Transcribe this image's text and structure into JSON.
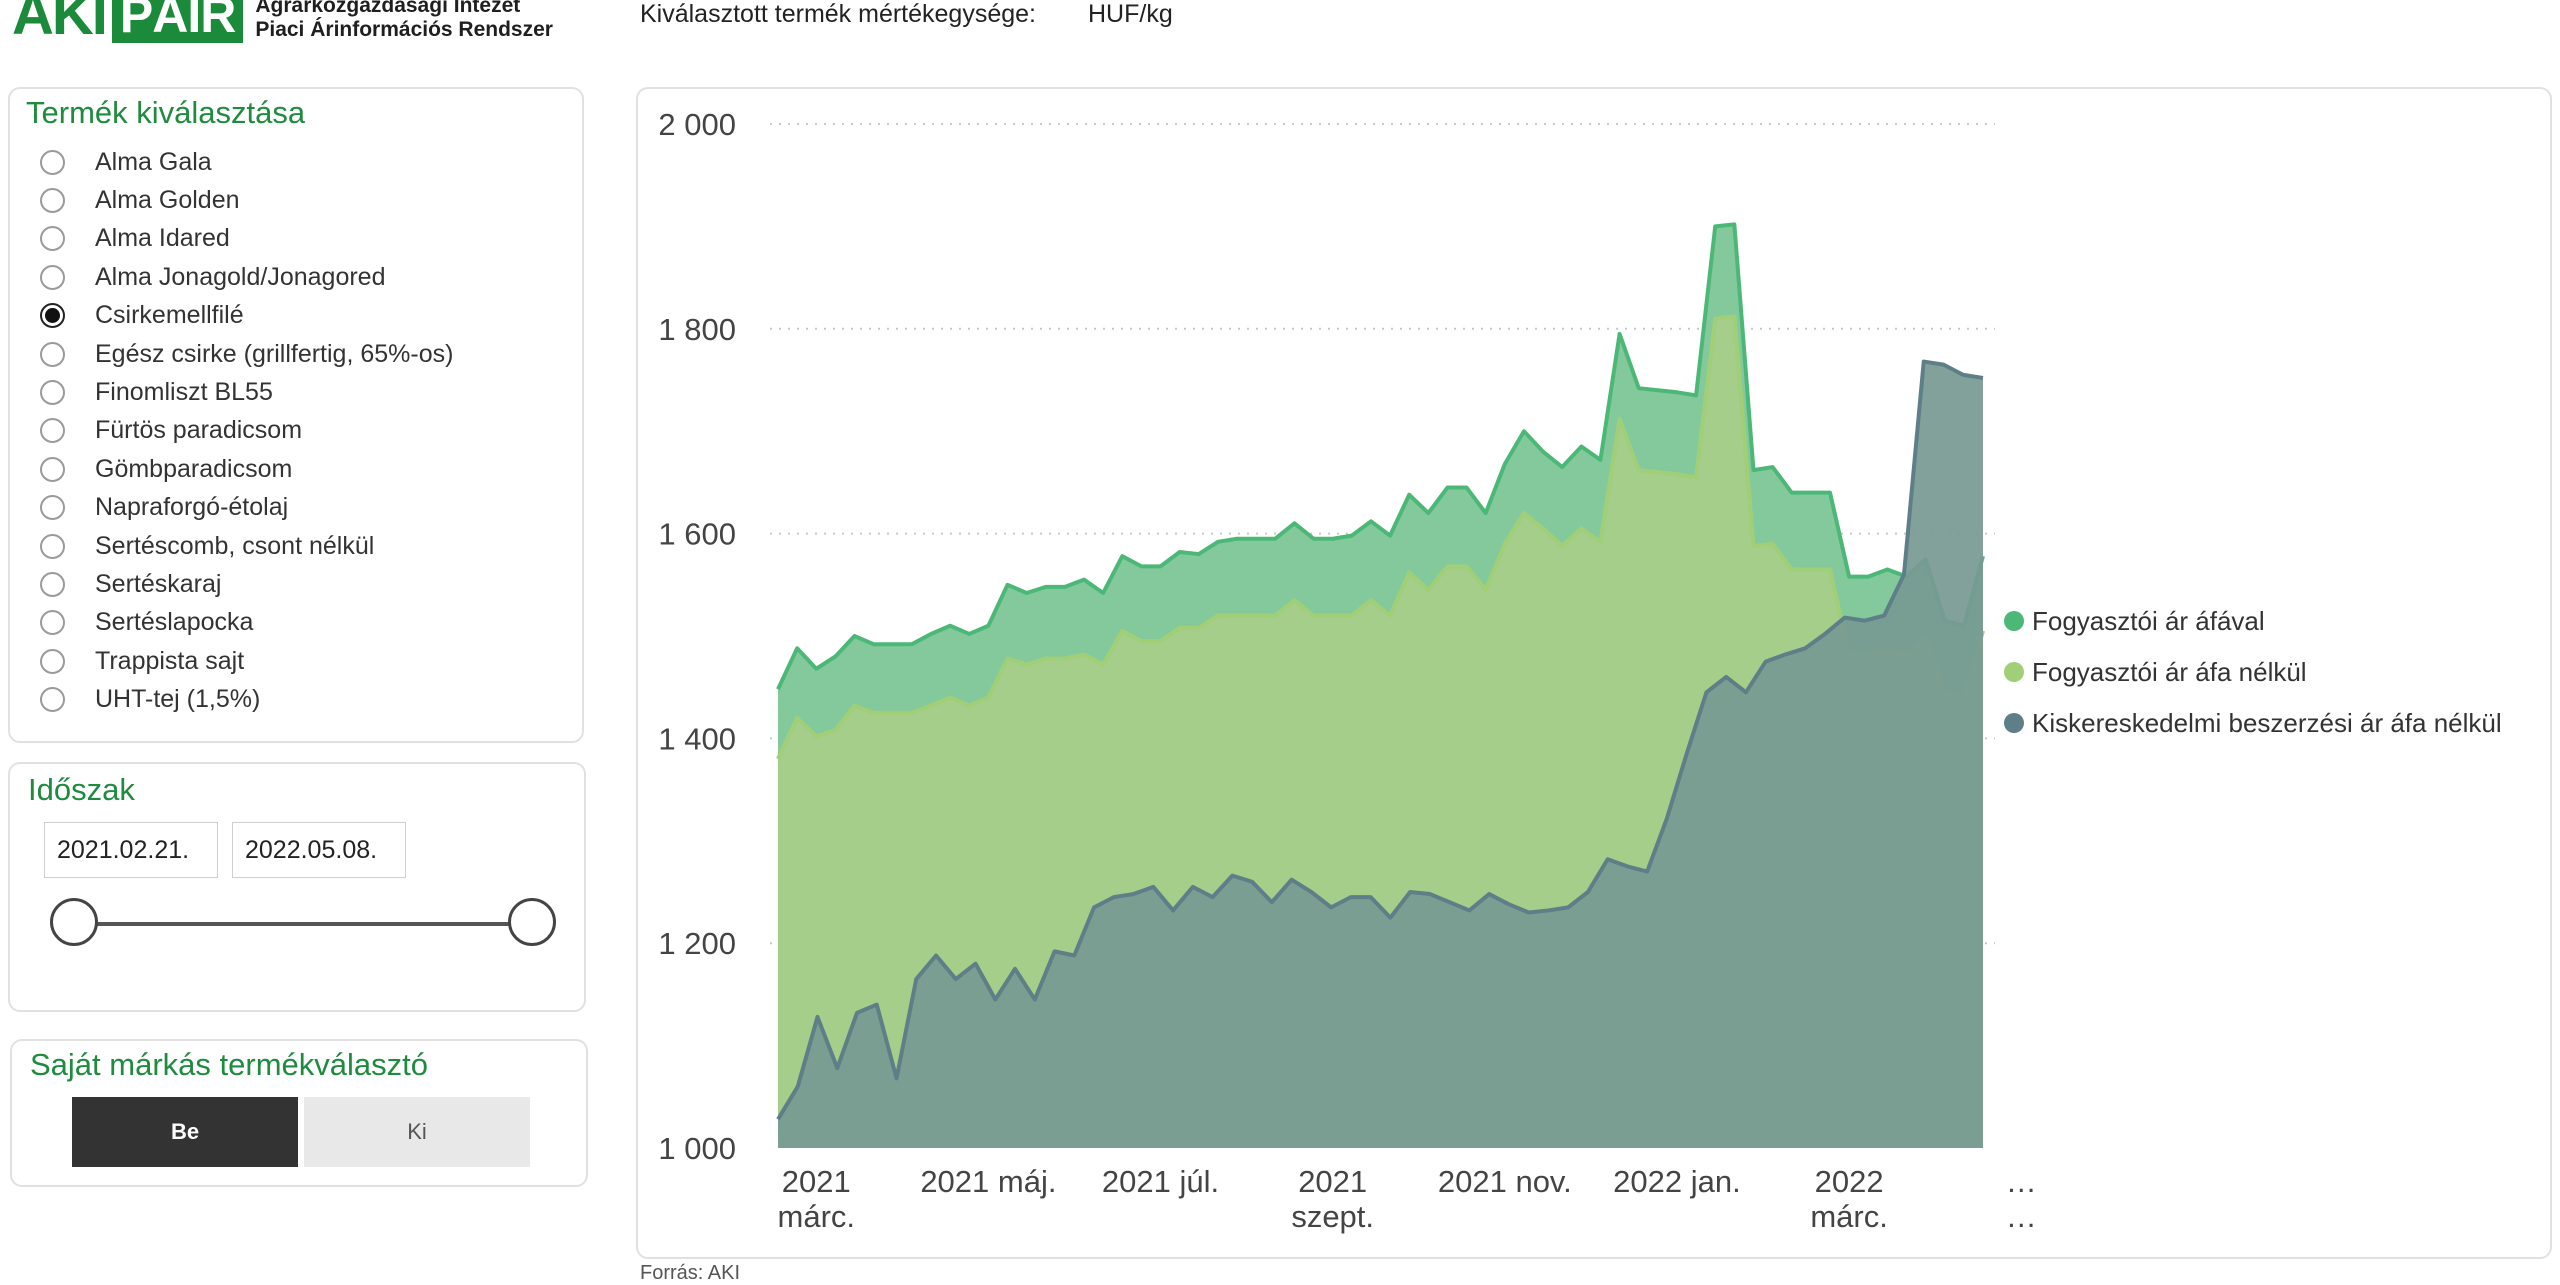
{
  "header": {
    "logo_mark_left": "AKI",
    "logo_mark_right": "PÁIR",
    "logo_line1": "Agrárközgazdasági Intézet",
    "logo_line2": "Piaci Árinformációs Rendszer",
    "unit_label": "Kiválasztott termék mértékegysége:",
    "unit_value": "HUF/kg"
  },
  "product_panel": {
    "title": "Termék kiválasztása",
    "items": [
      {
        "label": "Alma Gala",
        "selected": false
      },
      {
        "label": "Alma Golden",
        "selected": false
      },
      {
        "label": "Alma Idared",
        "selected": false
      },
      {
        "label": "Alma Jonagold/Jonagored",
        "selected": false
      },
      {
        "label": "Csirkemellfilé",
        "selected": true
      },
      {
        "label": "Egész csirke (grillfertig, 65%-os)",
        "selected": false
      },
      {
        "label": "Finomliszt BL55",
        "selected": false
      },
      {
        "label": "Fürtös paradicsom",
        "selected": false
      },
      {
        "label": "Gömbparadicsom",
        "selected": false
      },
      {
        "label": "Napraforgó-étolaj",
        "selected": false
      },
      {
        "label": "Sertéscomb, csont nélkül",
        "selected": false
      },
      {
        "label": "Sertéskaraj",
        "selected": false
      },
      {
        "label": "Sertéslapocka",
        "selected": false
      },
      {
        "label": "Trappista sajt",
        "selected": false
      },
      {
        "label": "UHT-tej (1,5%)",
        "selected": false
      }
    ]
  },
  "period_panel": {
    "title": "Időszak",
    "start_date": "2021.02.21.",
    "end_date": "2022.05.08."
  },
  "brand_panel": {
    "title": "Saját márkás termékválasztó",
    "on_label": "Be",
    "off_label": "Ki"
  },
  "footer": {
    "text": "Forrás: AKI"
  },
  "colors": {
    "series1_fill": "#84c99c",
    "series1_line": "#4cb877",
    "series2_fill": "#a4ce8a",
    "series2_line": "#a0cf78",
    "series3_fill": "#779a92",
    "series3_line": "#5e7f88",
    "accent": "#1e8b3e"
  },
  "chart_data": {
    "type": "area",
    "title": "",
    "xlabel": "",
    "ylabel": "HUF/kg",
    "ylim": [
      1000,
      2000
    ],
    "yticks": [
      1000,
      1200,
      1400,
      1600,
      1800,
      2000
    ],
    "ytick_labels": [
      "1 000",
      "1 200",
      "1 400",
      "1 600",
      "1 800",
      "2 000"
    ],
    "grid": "horizontal dotted",
    "x_ticks": [
      {
        "index": 2,
        "lines": [
          "2021",
          "márc."
        ]
      },
      {
        "index": 11,
        "lines": [
          "2021 máj."
        ]
      },
      {
        "index": 20,
        "lines": [
          "2021 júl."
        ]
      },
      {
        "index": 29,
        "lines": [
          "2021",
          "szept."
        ]
      },
      {
        "index": 38,
        "lines": [
          "2021 nov."
        ]
      },
      {
        "index": 47,
        "lines": [
          "2022 jan."
        ]
      },
      {
        "index": 56,
        "lines": [
          "2022",
          "márc."
        ]
      },
      {
        "index": 65,
        "lines": [
          "…",
          "…"
        ]
      }
    ],
    "series": [
      {
        "name": "Fogyasztói ár áfával",
        "values": [
          1448,
          1488,
          1468,
          1480,
          1500,
          1492,
          1492,
          1492,
          1502,
          1510,
          1502,
          1510,
          1550,
          1542,
          1548,
          1548,
          1555,
          1542,
          1578,
          1568,
          1568,
          1582,
          1580,
          1592,
          1595,
          1595,
          1595,
          1610,
          1595,
          1595,
          1598,
          1612,
          1598,
          1638,
          1620,
          1645,
          1645,
          1620,
          1668,
          1700,
          1680,
          1665,
          1685,
          1672,
          1795,
          1742,
          1740,
          1738,
          1735,
          1900,
          1902,
          1662,
          1665,
          1640,
          1640,
          1640,
          1558,
          1558,
          1565,
          1558,
          1575,
          1515,
          1510,
          1578
        ]
      },
      {
        "name": "Fogyasztói ár áfa nélkül",
        "values": [
          1380,
          1420,
          1402,
          1408,
          1432,
          1425,
          1425,
          1425,
          1432,
          1440,
          1432,
          1440,
          1478,
          1472,
          1478,
          1478,
          1482,
          1472,
          1505,
          1495,
          1495,
          1508,
          1508,
          1520,
          1520,
          1520,
          1520,
          1535,
          1520,
          1520,
          1520,
          1535,
          1520,
          1562,
          1545,
          1568,
          1568,
          1545,
          1590,
          1620,
          1605,
          1588,
          1605,
          1592,
          1712,
          1662,
          1660,
          1658,
          1655,
          1810,
          1812,
          1588,
          1590,
          1565,
          1565,
          1565,
          1482,
          1482,
          1488,
          1482,
          1500,
          1445,
          1440,
          1505
        ]
      },
      {
        "name": "Kiskereskedelmi beszerzési ár áfa nélkül",
        "values": [
          1028,
          1060,
          1128,
          1078,
          1132,
          1140,
          1068,
          1165,
          1188,
          1165,
          1180,
          1145,
          1175,
          1145,
          1192,
          1188,
          1235,
          1245,
          1248,
          1255,
          1232,
          1255,
          1245,
          1266,
          1260,
          1240,
          1262,
          1250,
          1235,
          1245,
          1245,
          1225,
          1250,
          1248,
          1240,
          1232,
          1248,
          1238,
          1230,
          1232,
          1235,
          1250,
          1282,
          1275,
          1270,
          1322,
          1385,
          1445,
          1460,
          1445,
          1475,
          1482,
          1488,
          1502,
          1518,
          1515,
          1520,
          1560,
          1768,
          1765,
          1755,
          1752
        ]
      }
    ]
  }
}
